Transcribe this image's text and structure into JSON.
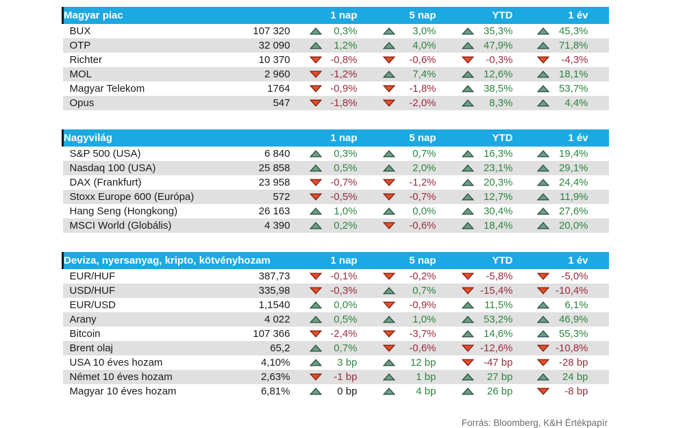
{
  "columns": [
    "1 nap",
    "5 nap",
    "YTD",
    "1 év"
  ],
  "footer": "Forrás: Bloomberg, K&H Értékpapír",
  "colors": {
    "header_bg": "#1ca8e0",
    "header_text": "#ffffff",
    "header_accent": "#191919",
    "stripe": "#e0e0e0",
    "positive": "#2e8540",
    "negative": "#9a2c3e",
    "neutral": "#1a1a1a",
    "up_triangle_fill": "#6d9e86",
    "up_triangle_stroke": "#2a5243",
    "down_triangle_fill": "#e0512a",
    "down_triangle_stroke": "#8c1d10",
    "source_text": "#6b6b6b"
  },
  "sections": [
    {
      "title": "Magyar piac",
      "rows": [
        {
          "name": "BUX",
          "value": "107 320",
          "changes": [
            {
              "dir": "up",
              "text": "0,3%",
              "tone": "pos"
            },
            {
              "dir": "up",
              "text": "3,0%",
              "tone": "pos"
            },
            {
              "dir": "up",
              "text": "35,3%",
              "tone": "pos"
            },
            {
              "dir": "up",
              "text": "45,3%",
              "tone": "pos"
            }
          ]
        },
        {
          "name": "OTP",
          "value": "32 090",
          "changes": [
            {
              "dir": "up",
              "text": "1,2%",
              "tone": "pos"
            },
            {
              "dir": "up",
              "text": "4,0%",
              "tone": "pos"
            },
            {
              "dir": "up",
              "text": "47,9%",
              "tone": "pos"
            },
            {
              "dir": "up",
              "text": "71,8%",
              "tone": "pos"
            }
          ]
        },
        {
          "name": "Richter",
          "value": "10 370",
          "changes": [
            {
              "dir": "down",
              "text": "-0,8%",
              "tone": "neg"
            },
            {
              "dir": "down",
              "text": "-0,6%",
              "tone": "neg"
            },
            {
              "dir": "down",
              "text": "-0,3%",
              "tone": "neg"
            },
            {
              "dir": "down",
              "text": "-4,3%",
              "tone": "neg"
            }
          ]
        },
        {
          "name": "MOL",
          "value": "2 960",
          "changes": [
            {
              "dir": "down",
              "text": "-1,2%",
              "tone": "neg"
            },
            {
              "dir": "up",
              "text": "7,4%",
              "tone": "pos"
            },
            {
              "dir": "up",
              "text": "12,6%",
              "tone": "pos"
            },
            {
              "dir": "up",
              "text": "18,1%",
              "tone": "pos"
            }
          ]
        },
        {
          "name": "Magyar Telekom",
          "value": "1764",
          "changes": [
            {
              "dir": "down",
              "text": "-0,9%",
              "tone": "neg"
            },
            {
              "dir": "down",
              "text": "-1,8%",
              "tone": "neg"
            },
            {
              "dir": "up",
              "text": "38,5%",
              "tone": "pos"
            },
            {
              "dir": "up",
              "text": "53,7%",
              "tone": "pos"
            }
          ]
        },
        {
          "name": "Opus",
          "value": "547",
          "changes": [
            {
              "dir": "down",
              "text": "-1,8%",
              "tone": "neg"
            },
            {
              "dir": "down",
              "text": "-2,0%",
              "tone": "neg"
            },
            {
              "dir": "up",
              "text": "8,3%",
              "tone": "pos"
            },
            {
              "dir": "up",
              "text": "4,4%",
              "tone": "pos"
            }
          ]
        }
      ]
    },
    {
      "title": "Nagyvilág",
      "rows": [
        {
          "name": "S&P 500 (USA)",
          "value": "6 840",
          "changes": [
            {
              "dir": "up",
              "text": "0,3%",
              "tone": "pos"
            },
            {
              "dir": "up",
              "text": "0,7%",
              "tone": "pos"
            },
            {
              "dir": "up",
              "text": "16,3%",
              "tone": "pos"
            },
            {
              "dir": "up",
              "text": "19,4%",
              "tone": "pos"
            }
          ]
        },
        {
          "name": "Nasdaq 100 (USA)",
          "value": "25 858",
          "changes": [
            {
              "dir": "up",
              "text": "0,5%",
              "tone": "pos"
            },
            {
              "dir": "up",
              "text": "2,0%",
              "tone": "pos"
            },
            {
              "dir": "up",
              "text": "23,1%",
              "tone": "pos"
            },
            {
              "dir": "up",
              "text": "29,1%",
              "tone": "pos"
            }
          ]
        },
        {
          "name": "DAX (Frankfurt)",
          "value": "23 958",
          "changes": [
            {
              "dir": "down",
              "text": "-0,7%",
              "tone": "neg"
            },
            {
              "dir": "down",
              "text": "-1,2%",
              "tone": "neg"
            },
            {
              "dir": "up",
              "text": "20,3%",
              "tone": "pos"
            },
            {
              "dir": "up",
              "text": "24,4%",
              "tone": "pos"
            }
          ]
        },
        {
          "name": "Stoxx Europe 600 (Európa)",
          "value": "572",
          "changes": [
            {
              "dir": "down",
              "text": "-0,5%",
              "tone": "neg"
            },
            {
              "dir": "down",
              "text": "-0,7%",
              "tone": "neg"
            },
            {
              "dir": "up",
              "text": "12,7%",
              "tone": "pos"
            },
            {
              "dir": "up",
              "text": "11,9%",
              "tone": "pos"
            }
          ]
        },
        {
          "name": "Hang Seng (Hongkong)",
          "value": "26 163",
          "changes": [
            {
              "dir": "up",
              "text": "1,0%",
              "tone": "pos"
            },
            {
              "dir": "up",
              "text": "0,0%",
              "tone": "pos"
            },
            {
              "dir": "up",
              "text": "30,4%",
              "tone": "pos"
            },
            {
              "dir": "up",
              "text": "27,6%",
              "tone": "pos"
            }
          ]
        },
        {
          "name": "MSCI World (Globális)",
          "value": "4 390",
          "changes": [
            {
              "dir": "up",
              "text": "0,2%",
              "tone": "pos"
            },
            {
              "dir": "down",
              "text": "-0,6%",
              "tone": "neg"
            },
            {
              "dir": "up",
              "text": "18,4%",
              "tone": "pos"
            },
            {
              "dir": "up",
              "text": "20,0%",
              "tone": "pos"
            }
          ]
        }
      ]
    },
    {
      "title": "Deviza, nyersanyag, kripto, kötvényhozam",
      "rows": [
        {
          "name": "EUR/HUF",
          "value": "387,73",
          "changes": [
            {
              "dir": "down",
              "text": "-0,1%",
              "tone": "neg"
            },
            {
              "dir": "down",
              "text": "-0,2%",
              "tone": "neg"
            },
            {
              "dir": "down",
              "text": "-5,8%",
              "tone": "neg"
            },
            {
              "dir": "down",
              "text": "-5,0%",
              "tone": "neg"
            }
          ]
        },
        {
          "name": "USD/HUF",
          "value": "335,98",
          "changes": [
            {
              "dir": "down",
              "text": "-0,3%",
              "tone": "neg"
            },
            {
              "dir": "up",
              "text": "0,7%",
              "tone": "pos"
            },
            {
              "dir": "down",
              "text": "-15,4%",
              "tone": "neg"
            },
            {
              "dir": "down",
              "text": "-10,4%",
              "tone": "neg"
            }
          ]
        },
        {
          "name": "EUR/USD",
          "value": "1,1540",
          "changes": [
            {
              "dir": "up",
              "text": "0,0%",
              "tone": "pos"
            },
            {
              "dir": "down",
              "text": "-0,9%",
              "tone": "neg"
            },
            {
              "dir": "up",
              "text": "11,5%",
              "tone": "pos"
            },
            {
              "dir": "up",
              "text": "6,1%",
              "tone": "pos"
            }
          ]
        },
        {
          "name": "Arany",
          "value": "4 022",
          "changes": [
            {
              "dir": "up",
              "text": "0,5%",
              "tone": "pos"
            },
            {
              "dir": "up",
              "text": "1,0%",
              "tone": "pos"
            },
            {
              "dir": "up",
              "text": "53,2%",
              "tone": "pos"
            },
            {
              "dir": "up",
              "text": "46,9%",
              "tone": "pos"
            }
          ]
        },
        {
          "name": "Bitcoin",
          "value": "107 366",
          "changes": [
            {
              "dir": "down",
              "text": "-2,4%",
              "tone": "neg"
            },
            {
              "dir": "down",
              "text": "-3,7%",
              "tone": "neg"
            },
            {
              "dir": "up",
              "text": "14,6%",
              "tone": "pos"
            },
            {
              "dir": "up",
              "text": "55,3%",
              "tone": "pos"
            }
          ]
        },
        {
          "name": "Brent olaj",
          "value": "65,2",
          "changes": [
            {
              "dir": "up",
              "text": "0,7%",
              "tone": "pos"
            },
            {
              "dir": "down",
              "text": "-0,6%",
              "tone": "neg"
            },
            {
              "dir": "down",
              "text": "-12,6%",
              "tone": "neg"
            },
            {
              "dir": "down",
              "text": "-10,8%",
              "tone": "neg"
            }
          ]
        },
        {
          "name": "USA 10 éves hozam",
          "value": "4,10%",
          "changes": [
            {
              "dir": "up",
              "text": "3 bp",
              "tone": "pos"
            },
            {
              "dir": "up",
              "text": "12 bp",
              "tone": "pos"
            },
            {
              "dir": "down",
              "text": "-47 bp",
              "tone": "neg"
            },
            {
              "dir": "down",
              "text": "-28 bp",
              "tone": "neg"
            }
          ]
        },
        {
          "name": "Német 10 éves hozam",
          "value": "2,63%",
          "changes": [
            {
              "dir": "down",
              "text": "-1 bp",
              "tone": "neg"
            },
            {
              "dir": "up",
              "text": "1 bp",
              "tone": "pos"
            },
            {
              "dir": "up",
              "text": "27 bp",
              "tone": "pos"
            },
            {
              "dir": "up",
              "text": "24 bp",
              "tone": "pos"
            }
          ]
        },
        {
          "name": "Magyar 10 éves hozam",
          "value": "6,81%",
          "changes": [
            {
              "dir": "up",
              "text": "0 bp",
              "tone": "neutral"
            },
            {
              "dir": "up",
              "text": "4 bp",
              "tone": "pos"
            },
            {
              "dir": "up",
              "text": "26 bp",
              "tone": "pos"
            },
            {
              "dir": "down",
              "text": "-8 bp",
              "tone": "neg"
            }
          ]
        }
      ]
    }
  ]
}
